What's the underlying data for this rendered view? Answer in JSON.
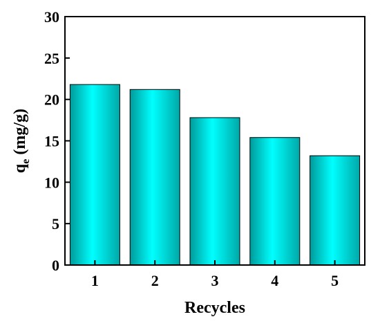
{
  "chart_data": {
    "type": "bar",
    "categories": [
      "1",
      "2",
      "3",
      "4",
      "5"
    ],
    "values": [
      21.8,
      21.2,
      17.8,
      15.4,
      13.2
    ],
    "xlabel": "Recycles",
    "ylabel_main": "q",
    "ylabel_sub": "e",
    "ylabel_unit": " (mg/g)",
    "ylim": [
      0,
      30
    ],
    "yticks": [
      0,
      5,
      10,
      15,
      20,
      25,
      30
    ],
    "grid": false,
    "legend": "none",
    "colors": {
      "bar_edge": "#00a0a0",
      "bar_mid": "#00ffff",
      "bar_dark": "#009999",
      "outline": "#000000"
    }
  }
}
